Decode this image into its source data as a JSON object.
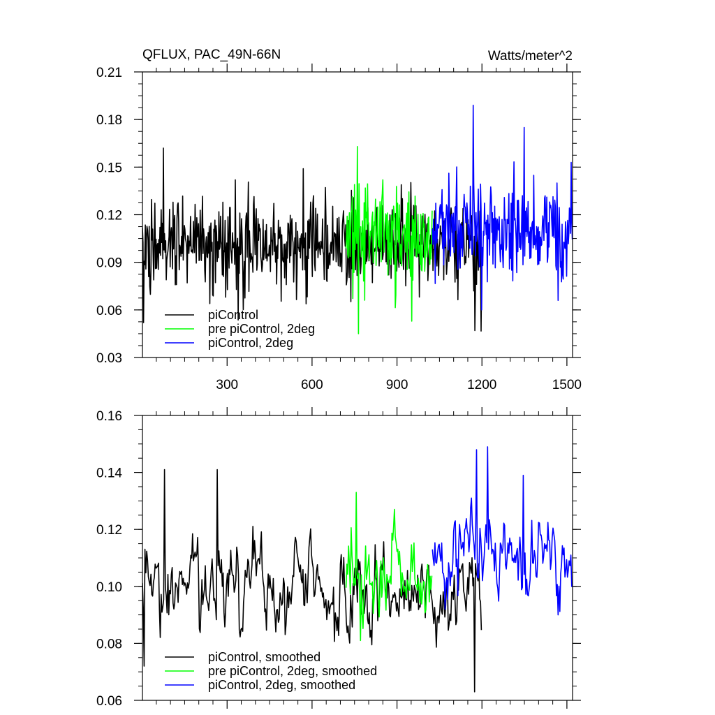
{
  "chart_data": [
    {
      "type": "line",
      "title": "QFLUX, PAC_49N-66N",
      "units": "Watts/meter^2",
      "xlim": [
        1,
        1520
      ],
      "ylim": [
        0.03,
        0.21
      ],
      "yticks": [
        0.03,
        0.06,
        0.09,
        0.12,
        0.15,
        0.18,
        0.21
      ],
      "ytick_labels": [
        "0.03",
        "0.06",
        "0.09",
        "0.12",
        "0.15",
        "0.18",
        "0.21"
      ],
      "xticks": [
        300,
        600,
        900,
        1200,
        1500
      ],
      "xtick_labels": [
        "300",
        "600",
        "900",
        "1200",
        "1500"
      ],
      "legend_position": "bottom-left",
      "series": [
        {
          "name": "piControl",
          "color": "#000000",
          "x_start": 1,
          "x_end": 1200,
          "mean": 0.102,
          "spread": 0.018,
          "smoothed": false,
          "peaks": [
            [
              75,
              0.162
            ],
            [
              570,
              0.149
            ],
            [
              1175,
              0.047
            ],
            [
              5,
              0.052
            ]
          ]
        },
        {
          "name": "pre piControl, 2deg",
          "color": "#00ff00",
          "x_start": 720,
          "x_end": 1025,
          "mean": 0.107,
          "spread": 0.019,
          "smoothed": false,
          "peaks": [
            [
              760,
              0.163
            ],
            [
              765,
              0.045
            ],
            [
              850,
              0.142
            ]
          ]
        },
        {
          "name": "piControl, 2deg",
          "color": "#0000ff",
          "x_start": 1025,
          "x_end": 1520,
          "mean": 0.111,
          "spread": 0.019,
          "smoothed": false,
          "peaks": [
            [
              1170,
              0.189
            ],
            [
              1350,
              0.175
            ],
            [
              1200,
              0.06
            ],
            [
              1470,
              0.066
            ]
          ]
        }
      ]
    },
    {
      "type": "line",
      "xlim": [
        1,
        1520
      ],
      "ylim": [
        0.06,
        0.16
      ],
      "yticks": [
        0.06,
        0.08,
        0.1,
        0.12,
        0.14,
        0.16
      ],
      "ytick_labels": [
        "0.06",
        "0.08",
        "0.10",
        "0.12",
        "0.14",
        "0.16"
      ],
      "xticks": [
        300,
        600,
        900,
        1200,
        1500
      ],
      "xtick_labels": [],
      "legend_position": "bottom-left",
      "series": [
        {
          "name": "piControl, smoothed",
          "color": "#000000",
          "x_start": 1,
          "x_end": 1200,
          "mean": 0.1,
          "spread": 0.011,
          "smoothed": true,
          "peaks": [
            [
              80,
              0.141
            ],
            [
              265,
              0.141
            ],
            [
              8,
              0.072
            ],
            [
              1175,
              0.063
            ]
          ]
        },
        {
          "name": "pre piControl, 2deg, smoothed",
          "color": "#00ff00",
          "x_start": 720,
          "x_end": 1025,
          "mean": 0.103,
          "spread": 0.011,
          "smoothed": true,
          "peaks": [
            [
              755,
              0.133
            ],
            [
              890,
              0.127
            ],
            [
              770,
              0.081
            ]
          ]
        },
        {
          "name": "piControl, 2deg, smoothed",
          "color": "#0000ff",
          "x_start": 1025,
          "x_end": 1520,
          "mean": 0.11,
          "spread": 0.011,
          "smoothed": true,
          "peaks": [
            [
              1180,
              0.148
            ],
            [
              1220,
              0.149
            ],
            [
              1345,
              0.139
            ],
            [
              1470,
              0.09
            ]
          ]
        }
      ]
    }
  ]
}
